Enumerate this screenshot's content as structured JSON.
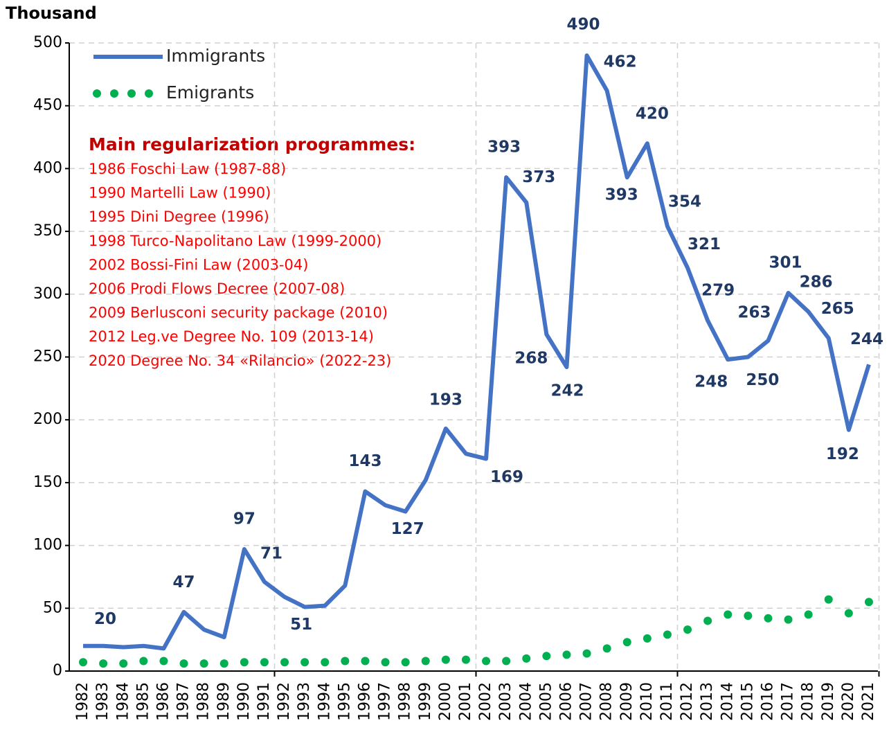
{
  "chart_data": {
    "type": "line",
    "y_label": "Thousand",
    "categories": [
      "1982",
      "1983",
      "1984",
      "1985",
      "1986",
      "1987",
      "1988",
      "1989",
      "1990",
      "1991",
      "1992",
      "1993",
      "1994",
      "1995",
      "1996",
      "1997",
      "1998",
      "1999",
      "2000",
      "2001",
      "2002",
      "2003",
      "2004",
      "2005",
      "2006",
      "2007",
      "2008",
      "2009",
      "2010",
      "2011",
      "2012",
      "2013",
      "2014",
      "2015",
      "2016",
      "2017",
      "2018",
      "2019",
      "2020",
      "2021"
    ],
    "series": [
      {
        "name": "Immigrants",
        "color": "#4472c4",
        "style": "line",
        "values": [
          20,
          20,
          19,
          20,
          18,
          47,
          33,
          27,
          97,
          71,
          59,
          51,
          52,
          68,
          143,
          132,
          127,
          152,
          193,
          173,
          169,
          393,
          373,
          268,
          242,
          490,
          462,
          393,
          420,
          354,
          321,
          279,
          248,
          250,
          263,
          301,
          286,
          265,
          192,
          244
        ],
        "value_labels": [
          "20",
          null,
          null,
          null,
          null,
          "47",
          null,
          null,
          "97",
          "71",
          null,
          "51",
          null,
          null,
          "143",
          null,
          "127",
          null,
          "193",
          null,
          "169",
          "393",
          "373",
          "268",
          "242",
          "490",
          "462",
          "393",
          "420",
          "354",
          "321",
          "279",
          "248",
          "250",
          "263",
          "301",
          "286",
          "265",
          "192",
          "244"
        ]
      },
      {
        "name": "Emigrants",
        "color": "#00b050",
        "style": "dots",
        "values": [
          7,
          6,
          6,
          8,
          8,
          6,
          6,
          6,
          7,
          7,
          7,
          7,
          7,
          8,
          8,
          7,
          7,
          8,
          9,
          9,
          8,
          8,
          10,
          12,
          13,
          14,
          18,
          23,
          26,
          29,
          33,
          40,
          45,
          44,
          42,
          41,
          45,
          57,
          46,
          55
        ]
      }
    ],
    "ylim": [
      0,
      500
    ],
    "yticks": [
      0,
      50,
      100,
      150,
      200,
      250,
      300,
      350,
      400,
      450,
      500
    ],
    "grid": true,
    "annotation": {
      "title": "Main regularization programmes:",
      "lines": [
        "1986 Foschi Law (1987-88)",
        "1990 Martelli Law (1990)",
        "1995 Dini Degree (1996)",
        "1998 Turco-Napolitano Law (1999-2000)",
        "2002 Bossi-Fini Law (2003-04)",
        "2006 Prodi Flows Decree (2007-08)",
        "2009 Berlusconi security package (2010)",
        "2012 Leg.ve Degree No. 109 (2013-14)",
        "2020 Degree No. 34 «Rilancio» (2022-23)"
      ]
    }
  }
}
